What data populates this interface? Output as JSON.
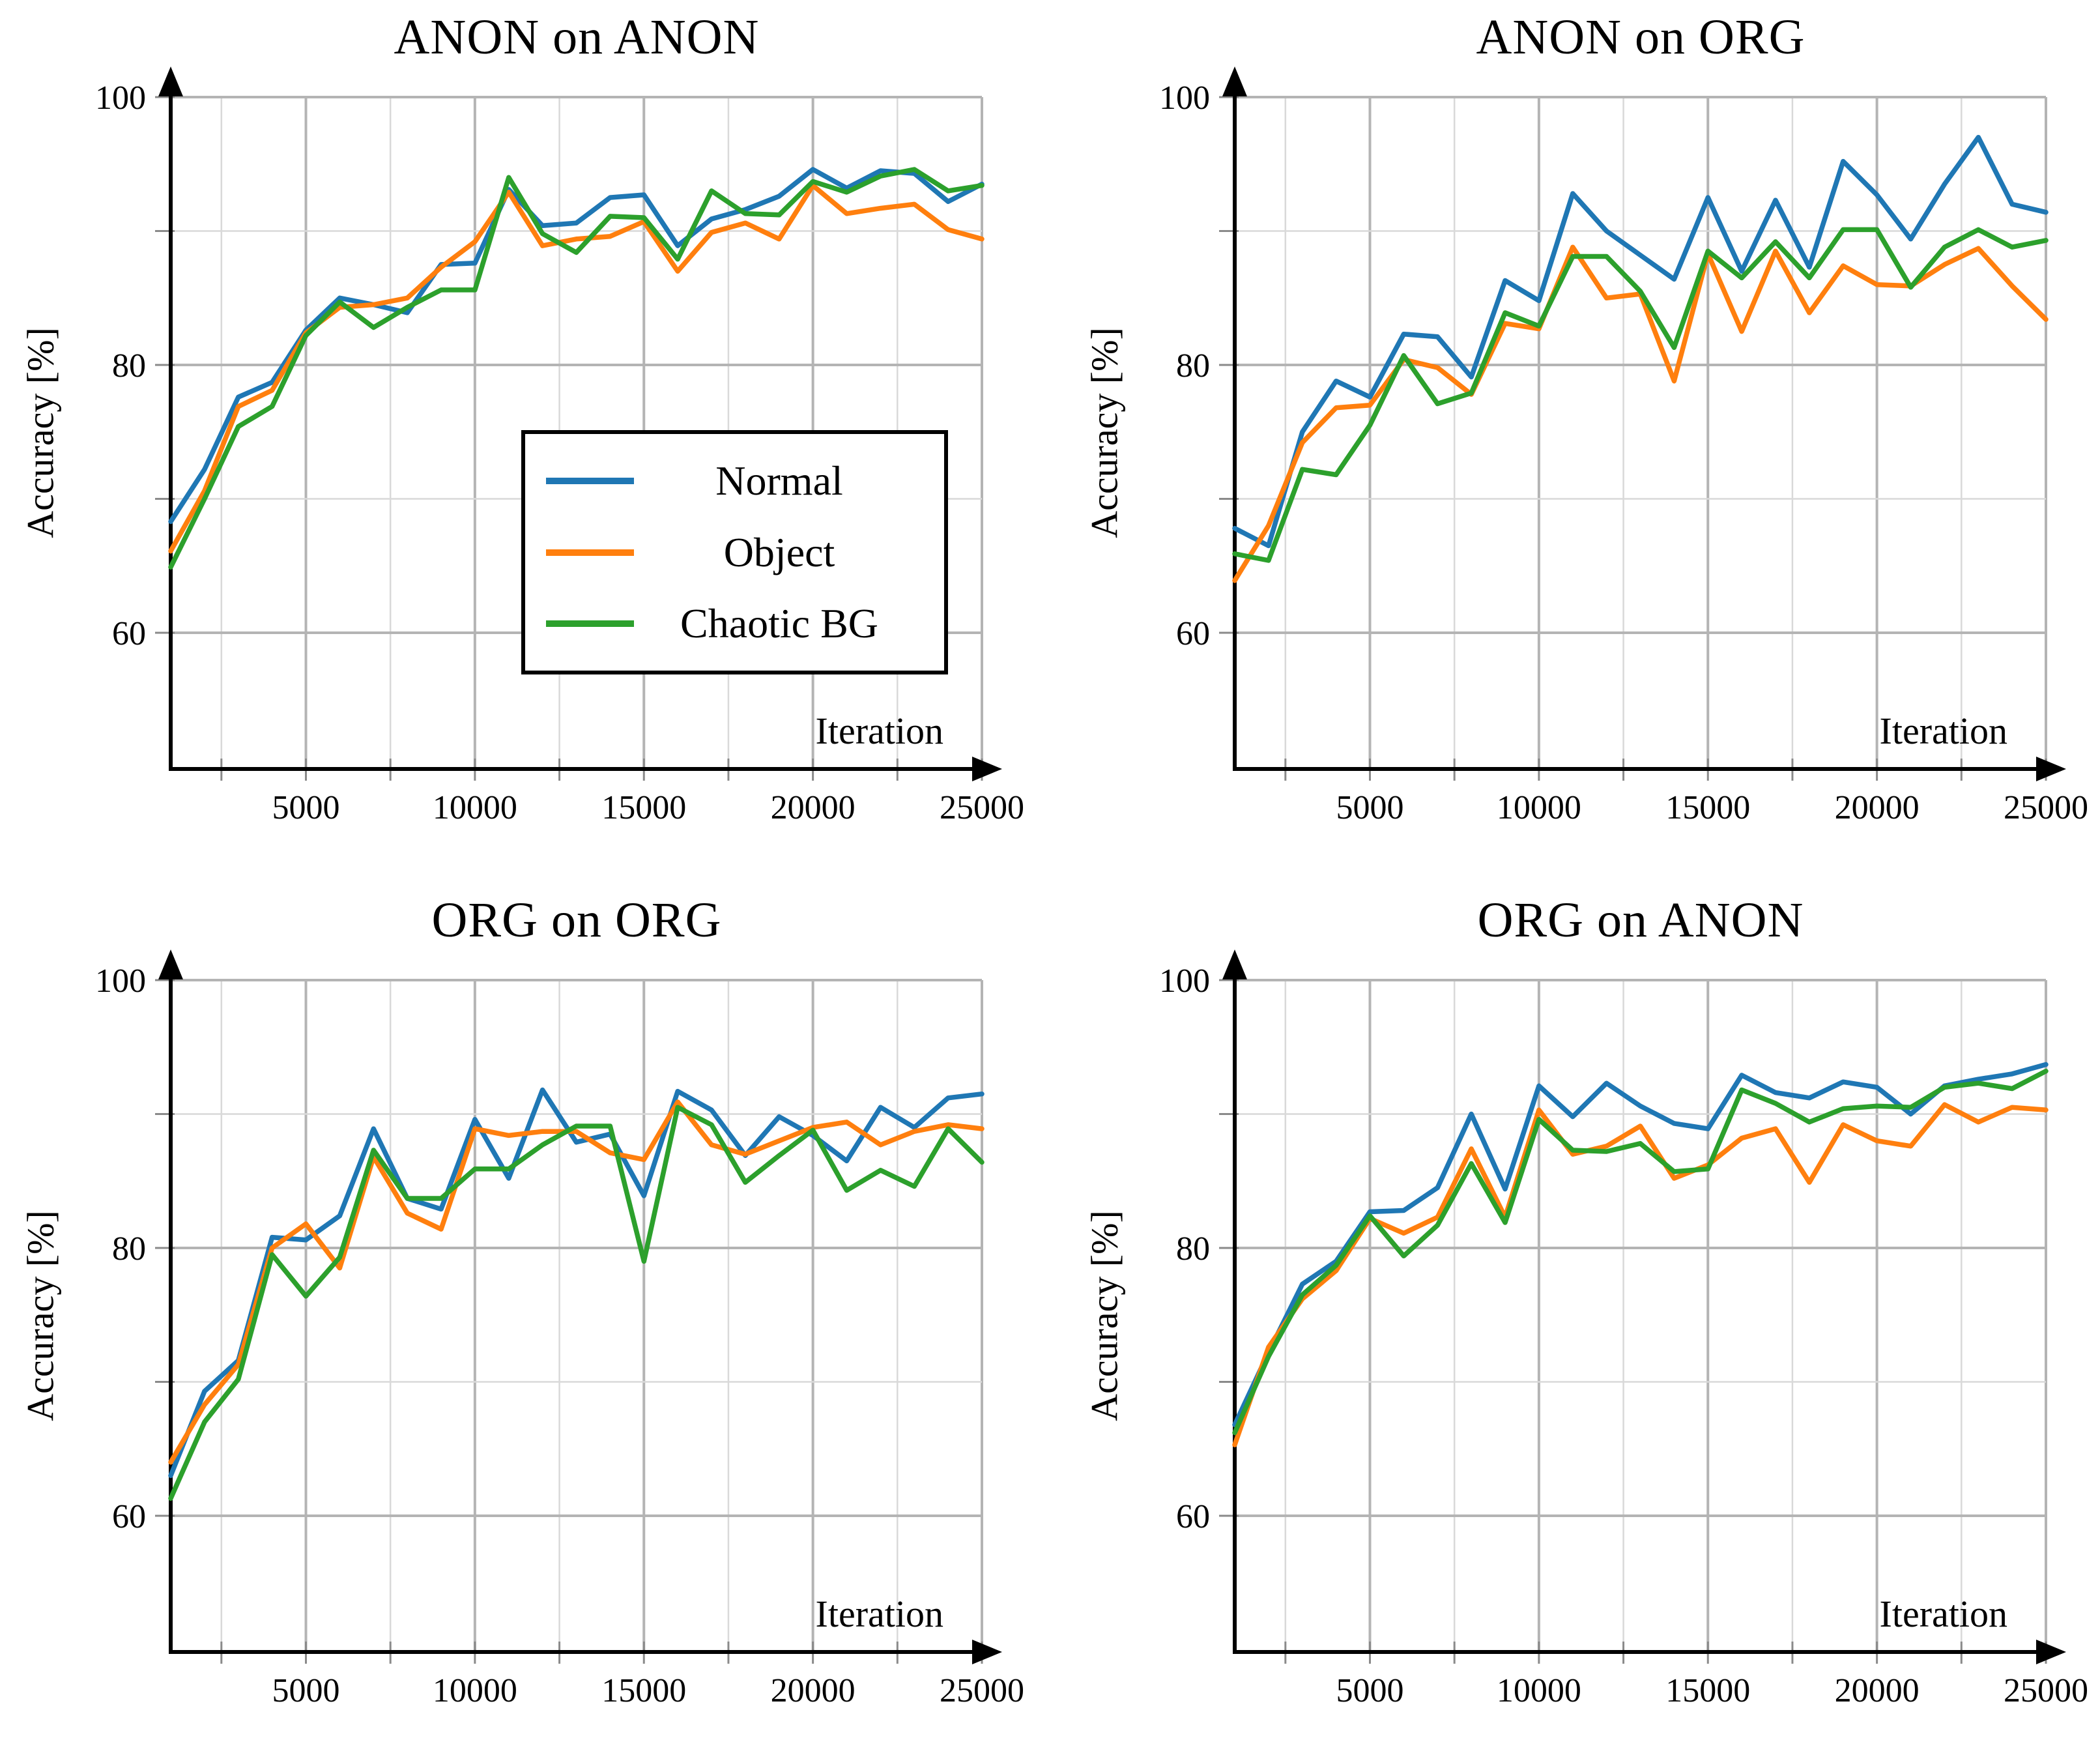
{
  "figure": {
    "background": "#ffffff"
  },
  "colors": {
    "normal": "#1f77b4",
    "object": "#ff7f0e",
    "chaotic_bg": "#2ca02c",
    "grid_major": "#b4b4b4",
    "grid_minor": "#d9d9d9",
    "tick": "#8a8a8a",
    "axis": "#000000",
    "text": "#000000"
  },
  "legend": {
    "items": [
      {
        "label": "Normal",
        "color_key": "normal"
      },
      {
        "label": "Object",
        "color_key": "object"
      },
      {
        "label": "Chaotic BG",
        "color_key": "chaotic_bg"
      }
    ]
  },
  "chart_data": [
    {
      "type": "line",
      "title": "ANON on ANON",
      "xlabel": "Iteration",
      "ylabel": "Accuracy [%]",
      "xlim": [
        1000,
        25000
      ],
      "ylim": [
        50,
        101
      ],
      "grid": true,
      "legend_position": "lower center-right (only this panel)",
      "x": [
        1000,
        2000,
        3000,
        4000,
        5000,
        6000,
        7000,
        8000,
        9000,
        10000,
        11000,
        12000,
        13000,
        14000,
        15000,
        16000,
        17000,
        18000,
        19000,
        20000,
        21000,
        22000,
        23000,
        24000,
        25000
      ],
      "xticks": [
        5000,
        10000,
        15000,
        20000,
        25000
      ],
      "xticklabels": [
        "5000",
        "10000",
        "15000",
        "20000",
        "25000"
      ],
      "xminorticks": [
        2500,
        7500,
        12500,
        17500,
        22500
      ],
      "yticks": [
        60,
        80,
        100
      ],
      "yticklabels": [
        "60",
        "80",
        "100"
      ],
      "ygrid_major": [
        60,
        80,
        100
      ],
      "ygrid_minor": [
        70,
        90
      ],
      "series": [
        {
          "name": "Normal",
          "color_key": "normal",
          "values": [
            68.3,
            72.2,
            77.6,
            78.7,
            82.6,
            85.0,
            84.5,
            83.9,
            87.5,
            87.6,
            93.1,
            90.4,
            90.6,
            92.5,
            92.7,
            88.9,
            90.9,
            91.6,
            92.6,
            94.6,
            93.2,
            94.5,
            94.3,
            92.2,
            93.5
          ]
        },
        {
          "name": "Object",
          "color_key": "object",
          "values": [
            66.1,
            70.6,
            76.9,
            78.1,
            82.4,
            84.3,
            84.5,
            85.0,
            87.3,
            89.2,
            92.9,
            88.9,
            89.4,
            89.6,
            90.7,
            87.0,
            89.9,
            90.6,
            89.4,
            93.4,
            91.3,
            91.7,
            92.0,
            90.1,
            89.4
          ]
        },
        {
          "name": "Chaotic BG",
          "color_key": "chaotic_bg",
          "values": [
            64.9,
            70.0,
            75.4,
            76.9,
            82.2,
            84.7,
            82.8,
            84.3,
            85.6,
            85.6,
            94.0,
            89.8,
            88.4,
            91.1,
            91.0,
            87.9,
            93.0,
            91.3,
            91.2,
            93.7,
            92.9,
            94.1,
            94.6,
            93.0,
            93.4
          ]
        }
      ]
    },
    {
      "type": "line",
      "title": "ANON on ORG",
      "xlabel": "Iteration",
      "ylabel": "Accuracy [%]",
      "xlim": [
        1000,
        25000
      ],
      "ylim": [
        50,
        101
      ],
      "grid": true,
      "x": [
        1000,
        2000,
        3000,
        4000,
        5000,
        6000,
        7000,
        8000,
        9000,
        10000,
        11000,
        12000,
        13000,
        14000,
        15000,
        16000,
        17000,
        18000,
        19000,
        20000,
        21000,
        22000,
        23000,
        24000,
        25000
      ],
      "xticks": [
        5000,
        10000,
        15000,
        20000,
        25000
      ],
      "xticklabels": [
        "5000",
        "10000",
        "15000",
        "20000",
        "25000"
      ],
      "xminorticks": [
        2500,
        7500,
        12500,
        17500,
        22500
      ],
      "yticks": [
        60,
        80,
        100
      ],
      "yticklabels": [
        "60",
        "80",
        "100"
      ],
      "ygrid_major": [
        60,
        80,
        100
      ],
      "ygrid_minor": [
        70,
        90
      ],
      "series": [
        {
          "name": "Normal",
          "color_key": "normal",
          "values": [
            67.8,
            66.5,
            75.0,
            78.8,
            77.6,
            82.3,
            82.1,
            79.1,
            86.3,
            84.8,
            92.8,
            90.0,
            88.2,
            86.4,
            92.5,
            87.0,
            92.3,
            87.3,
            95.2,
            92.7,
            89.4,
            93.5,
            97.0,
            92.0,
            91.4
          ]
        },
        {
          "name": "Object",
          "color_key": "object",
          "values": [
            63.9,
            68.0,
            74.2,
            76.8,
            77.0,
            80.4,
            79.8,
            77.8,
            83.1,
            82.7,
            88.8,
            85.0,
            85.3,
            78.8,
            88.3,
            82.5,
            88.5,
            83.9,
            87.4,
            86.0,
            85.9,
            87.5,
            88.7,
            85.9,
            83.4
          ]
        },
        {
          "name": "Chaotic BG",
          "color_key": "chaotic_bg",
          "values": [
            65.9,
            65.4,
            72.2,
            71.8,
            75.5,
            80.7,
            77.1,
            77.9,
            83.9,
            82.9,
            88.1,
            88.1,
            85.5,
            81.3,
            88.5,
            86.5,
            89.2,
            86.5,
            90.1,
            90.1,
            85.8,
            88.8,
            90.1,
            88.8,
            89.3
          ]
        }
      ]
    },
    {
      "type": "line",
      "title": "ORG on ORG",
      "xlabel": "Iteration",
      "ylabel": "Accuracy [%]",
      "xlim": [
        1000,
        25000
      ],
      "ylim": [
        50,
        101
      ],
      "grid": true,
      "x": [
        1000,
        2000,
        3000,
        4000,
        5000,
        6000,
        7000,
        8000,
        9000,
        10000,
        11000,
        12000,
        13000,
        14000,
        15000,
        16000,
        17000,
        18000,
        19000,
        20000,
        21000,
        22000,
        23000,
        24000,
        25000
      ],
      "xticks": [
        5000,
        10000,
        15000,
        20000,
        25000
      ],
      "xticklabels": [
        "5000",
        "10000",
        "15000",
        "20000",
        "25000"
      ],
      "xminorticks": [
        2500,
        7500,
        12500,
        17500,
        22500
      ],
      "yticks": [
        60,
        80,
        100
      ],
      "yticklabels": [
        "60",
        "80",
        "100"
      ],
      "ygrid_major": [
        60,
        80,
        100
      ],
      "ygrid_minor": [
        70,
        90
      ],
      "series": [
        {
          "name": "Normal",
          "color_key": "normal",
          "values": [
            63.0,
            69.3,
            71.6,
            80.8,
            80.6,
            82.4,
            88.9,
            83.7,
            82.9,
            89.6,
            85.2,
            91.8,
            87.9,
            88.5,
            83.9,
            91.7,
            90.3,
            86.9,
            89.8,
            88.4,
            86.5,
            90.5,
            89.0,
            91.2,
            91.5
          ]
        },
        {
          "name": "Object",
          "color_key": "object",
          "values": [
            64.0,
            68.3,
            71.3,
            80.0,
            81.8,
            78.5,
            86.8,
            82.6,
            81.4,
            88.9,
            88.4,
            88.7,
            88.7,
            87.1,
            86.6,
            90.9,
            87.7,
            87.0,
            88.0,
            89.0,
            89.4,
            87.7,
            88.7,
            89.2,
            88.9
          ]
        },
        {
          "name": "Chaotic BG",
          "color_key": "chaotic_bg",
          "values": [
            61.3,
            67.0,
            70.2,
            79.5,
            76.4,
            79.3,
            87.3,
            83.7,
            83.7,
            85.9,
            85.9,
            87.7,
            89.1,
            89.1,
            79.0,
            90.5,
            89.2,
            84.9,
            86.9,
            88.8,
            84.3,
            85.8,
            84.6,
            88.9,
            86.4
          ]
        }
      ]
    },
    {
      "type": "line",
      "title": "ORG on ANON",
      "xlabel": "Iteration",
      "ylabel": "Accuracy [%]",
      "xlim": [
        1000,
        25000
      ],
      "ylim": [
        50,
        101
      ],
      "grid": true,
      "x": [
        1000,
        2000,
        3000,
        4000,
        5000,
        6000,
        7000,
        8000,
        9000,
        10000,
        11000,
        12000,
        13000,
        14000,
        15000,
        16000,
        17000,
        18000,
        19000,
        20000,
        21000,
        22000,
        23000,
        24000,
        25000
      ],
      "xticks": [
        5000,
        10000,
        15000,
        20000,
        25000
      ],
      "xticklabels": [
        "5000",
        "10000",
        "15000",
        "20000",
        "25000"
      ],
      "xminorticks": [
        2500,
        7500,
        12500,
        17500,
        22500
      ],
      "yticks": [
        60,
        80,
        100
      ],
      "yticklabels": [
        "60",
        "80",
        "100"
      ],
      "ygrid_major": [
        60,
        80,
        100
      ],
      "ygrid_minor": [
        70,
        90
      ],
      "series": [
        {
          "name": "Normal",
          "color_key": "normal",
          "values": [
            66.8,
            72.2,
            77.3,
            79.0,
            82.7,
            82.8,
            84.5,
            90.0,
            84.4,
            92.1,
            89.8,
            92.3,
            90.6,
            89.3,
            88.9,
            92.9,
            91.6,
            91.2,
            92.4,
            92.0,
            90.0,
            92.1,
            92.6,
            93.0,
            93.7
          ]
        },
        {
          "name": "Object",
          "color_key": "object",
          "values": [
            65.3,
            72.6,
            76.2,
            78.3,
            82.2,
            81.1,
            82.3,
            87.4,
            82.3,
            90.3,
            87.0,
            87.6,
            89.1,
            85.2,
            86.2,
            88.2,
            88.9,
            84.9,
            89.2,
            88.0,
            87.6,
            90.7,
            89.4,
            90.5,
            90.3
          ]
        },
        {
          "name": "Chaotic BG",
          "color_key": "chaotic_bg",
          "values": [
            66.2,
            71.9,
            76.5,
            78.7,
            82.4,
            79.4,
            81.7,
            86.3,
            81.9,
            89.6,
            87.3,
            87.2,
            87.8,
            85.7,
            85.9,
            91.8,
            90.8,
            89.4,
            90.4,
            90.6,
            90.5,
            92.0,
            92.3,
            91.9,
            93.2
          ]
        }
      ]
    }
  ]
}
